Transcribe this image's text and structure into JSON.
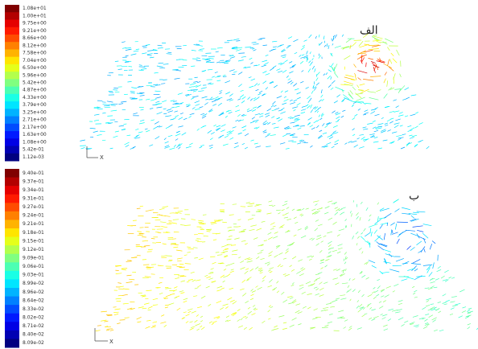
{
  "panels": [
    {
      "label": "الف",
      "colorbar": [
        "1.08e+01",
        "1.00e+01",
        "9.75e+00",
        "9.21e+00",
        "8.66e+00",
        "8.12e+00",
        "7.58e+00",
        "7.04e+00",
        "6.50e+00",
        "5.96e+00",
        "5.42e+00",
        "4.87e+00",
        "4.33e+00",
        "3.79e+00",
        "3.25e+00",
        "2.71e+00",
        "2.17e+00",
        "1.63e+00",
        "1.08e+00",
        "5.42e-01",
        "1.12e-03"
      ],
      "axis": "X"
    },
    {
      "label": "ب",
      "colorbar": [
        "9.40e-01",
        "9.37e-01",
        "9.34e-01",
        "9.31e-01",
        "9.27e-01",
        "9.24e-01",
        "9.21e-01",
        "9.18e-01",
        "9.15e-01",
        "9.12e-01",
        "9.09e-01",
        "9.06e-01",
        "9.03e-01",
        "8.99e-02",
        "8.96e-02",
        "8.64e-02",
        "8.33e-02",
        "8.02e-02",
        "8.71e-02",
        "8.40e-02",
        "8.09e-02"
      ],
      "axis": "X"
    }
  ]
}
